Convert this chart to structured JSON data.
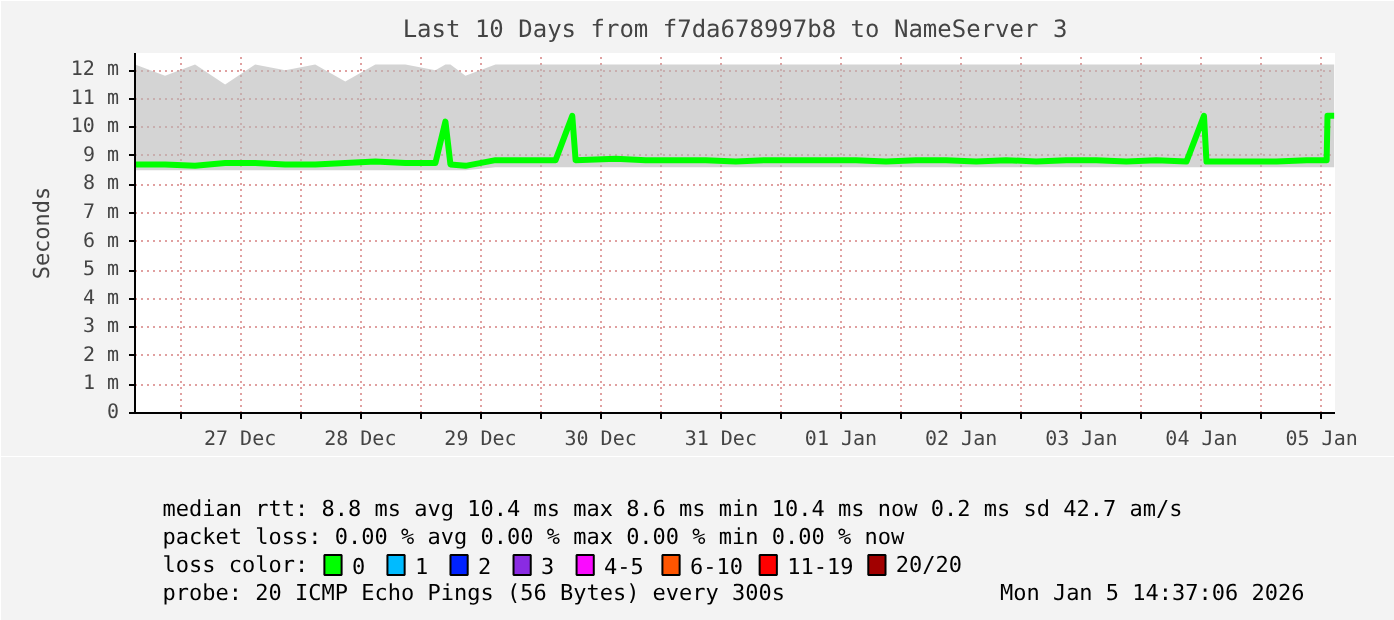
{
  "chart_data": {
    "type": "line",
    "title": "Last 10 Days from f7da678997b8 to NameServer 3",
    "ylabel": "Seconds",
    "legend_title": "loss color:",
    "legend": "bottom",
    "grid": true,
    "x": [
      "2025-12-26T15:00",
      "2025-12-26T21:00",
      "2025-12-27T03:00",
      "2025-12-27T09:00",
      "2025-12-27T15:00",
      "2025-12-27T21:00",
      "2025-12-28T03:00",
      "2025-12-28T09:00",
      "2025-12-28T15:00",
      "2025-12-28T21:00",
      "2025-12-29T03:00",
      "2025-12-29T05:00",
      "2025-12-29T06:00",
      "2025-12-29T09:00",
      "2025-12-29T15:00",
      "2025-12-29T21:00",
      "2025-12-30T03:00",
      "2025-12-30T06:20",
      "2025-12-30T07:00",
      "2025-12-30T15:00",
      "2025-12-30T21:00",
      "2025-12-31T03:00",
      "2025-12-31T09:00",
      "2025-12-31T15:00",
      "2025-12-31T21:00",
      "2026-01-01T03:00",
      "2026-01-01T09:00",
      "2026-01-01T15:00",
      "2026-01-01T21:00",
      "2026-01-02T03:00",
      "2026-01-02T09:00",
      "2026-01-02T15:00",
      "2026-01-02T21:00",
      "2026-01-03T03:00",
      "2026-01-03T09:00",
      "2026-01-03T15:00",
      "2026-01-03T21:00",
      "2026-01-04T03:00",
      "2026-01-04T09:00",
      "2026-01-04T12:30",
      "2026-01-04T13:00",
      "2026-01-04T21:00",
      "2026-01-05T03:00",
      "2026-01-05T09:00",
      "2026-01-05T13:00",
      "2026-01-05T13:10",
      "2026-01-05T14:30"
    ],
    "series": [
      {
        "name": "0",
        "color": "#00ff00",
        "values": [
          8.7,
          8.7,
          8.65,
          8.75,
          8.75,
          8.7,
          8.7,
          8.75,
          8.8,
          8.75,
          8.75,
          10.2,
          8.7,
          8.65,
          8.85,
          8.85,
          8.85,
          10.4,
          8.85,
          8.9,
          8.85,
          8.85,
          8.85,
          8.8,
          8.85,
          8.85,
          8.85,
          8.85,
          8.8,
          8.85,
          8.85,
          8.8,
          8.85,
          8.8,
          8.85,
          8.85,
          8.8,
          8.85,
          8.8,
          10.4,
          8.8,
          8.8,
          8.8,
          8.85,
          8.85,
          10.4,
          10.4
        ],
        "lower": [
          8.5,
          8.5,
          8.5,
          8.5,
          8.5,
          8.5,
          8.5,
          8.5,
          8.5,
          8.5,
          8.5,
          8.5,
          8.5,
          8.5,
          8.6,
          8.6,
          8.6,
          8.6,
          8.6,
          8.6,
          8.6,
          8.6,
          8.6,
          8.6,
          8.6,
          8.6,
          8.6,
          8.6,
          8.6,
          8.6,
          8.6,
          8.6,
          8.6,
          8.6,
          8.6,
          8.6,
          8.6,
          8.6,
          8.6,
          8.6,
          8.6,
          8.6,
          8.6,
          8.6,
          8.6,
          8.6,
          8.6
        ],
        "upper": [
          12.2,
          11.8,
          12.2,
          11.5,
          12.2,
          12.0,
          12.2,
          11.6,
          12.2,
          12.2,
          12.0,
          12.2,
          12.2,
          11.8,
          12.2,
          12.2,
          12.2,
          12.2,
          12.2,
          12.2,
          12.2,
          12.2,
          12.2,
          12.2,
          12.2,
          12.2,
          12.2,
          12.2,
          12.2,
          12.2,
          12.2,
          12.2,
          12.2,
          12.2,
          12.2,
          12.2,
          12.2,
          12.2,
          12.2,
          12.2,
          12.2,
          12.2,
          12.2,
          12.2,
          12.2,
          12.2,
          12.2
        ]
      },
      {
        "name": "1",
        "color": "#00bbff",
        "values": [
          null,
          null,
          null,
          null,
          null,
          null,
          null,
          null,
          null,
          null,
          null,
          null,
          null,
          null,
          null,
          null,
          null,
          null,
          null,
          null,
          null,
          null,
          null,
          null,
          null,
          null,
          null,
          null,
          null,
          null,
          null,
          null,
          null,
          null,
          null,
          null,
          null,
          null,
          null,
          null,
          null,
          null,
          null,
          null,
          null,
          null,
          null
        ]
      },
      {
        "name": "2",
        "color": "#0022ff",
        "values": [
          null,
          null,
          null,
          null,
          null,
          null,
          null,
          null,
          null,
          null,
          null,
          null,
          null,
          null,
          null,
          null,
          null,
          null,
          null,
          null,
          null,
          null,
          null,
          null,
          null,
          null,
          null,
          null,
          null,
          null,
          null,
          null,
          null,
          null,
          null,
          null,
          null,
          null,
          null,
          null,
          null,
          null,
          null,
          null,
          null,
          null,
          null
        ]
      },
      {
        "name": "3",
        "color": "#8a2be2",
        "values": [
          null,
          null,
          null,
          null,
          null,
          null,
          null,
          null,
          null,
          null,
          null,
          null,
          null,
          null,
          null,
          null,
          null,
          null,
          null,
          null,
          null,
          null,
          null,
          null,
          null,
          null,
          null,
          null,
          null,
          null,
          null,
          null,
          null,
          null,
          null,
          null,
          null,
          null,
          null,
          null,
          null,
          null,
          null,
          null,
          null,
          null,
          null
        ]
      },
      {
        "name": "4-5",
        "color": "#fa0bff",
        "values": [
          null,
          null,
          null,
          null,
          null,
          null,
          null,
          null,
          null,
          null,
          null,
          null,
          null,
          null,
          null,
          null,
          null,
          null,
          null,
          null,
          null,
          null,
          null,
          null,
          null,
          null,
          null,
          null,
          null,
          null,
          null,
          null,
          null,
          null,
          null,
          null,
          null,
          null,
          null,
          null,
          null,
          null,
          null,
          null,
          null,
          null,
          null
        ]
      },
      {
        "name": "6-10",
        "color": "#ff5500",
        "values": [
          null,
          null,
          null,
          null,
          null,
          null,
          null,
          null,
          null,
          null,
          null,
          null,
          null,
          null,
          null,
          null,
          null,
          null,
          null,
          null,
          null,
          null,
          null,
          null,
          null,
          null,
          null,
          null,
          null,
          null,
          null,
          null,
          null,
          null,
          null,
          null,
          null,
          null,
          null,
          null,
          null,
          null,
          null,
          null,
          null,
          null,
          null
        ]
      },
      {
        "name": "11-19",
        "color": "#ff0000",
        "values": [
          null,
          null,
          null,
          null,
          null,
          null,
          null,
          null,
          null,
          null,
          null,
          null,
          null,
          null,
          null,
          null,
          null,
          null,
          null,
          null,
          null,
          null,
          null,
          null,
          null,
          null,
          null,
          null,
          null,
          null,
          null,
          null,
          null,
          null,
          null,
          null,
          null,
          null,
          null,
          null,
          null,
          null,
          null,
          null,
          null,
          null,
          null
        ]
      },
      {
        "name": "20/20",
        "color": "#a10000",
        "values": [
          null,
          null,
          null,
          null,
          null,
          null,
          null,
          null,
          null,
          null,
          null,
          null,
          null,
          null,
          null,
          null,
          null,
          null,
          null,
          null,
          null,
          null,
          null,
          null,
          null,
          null,
          null,
          null,
          null,
          null,
          null,
          null,
          null,
          null,
          null,
          null,
          null,
          null,
          null,
          null,
          null,
          null,
          null,
          null,
          null,
          null,
          null
        ]
      }
    ],
    "xlim": [
      "2025-12-26T15:00",
      "2026-01-05T14:40"
    ],
    "xticks": [
      {
        "value": "2025-12-27T00:00",
        "label": null
      },
      {
        "value": "2025-12-27T12:00",
        "label": "27 Dec"
      },
      {
        "value": "2025-12-28T00:00",
        "label": null
      },
      {
        "value": "2025-12-28T12:00",
        "label": "28 Dec"
      },
      {
        "value": "2025-12-29T00:00",
        "label": null
      },
      {
        "value": "2025-12-29T12:00",
        "label": "29 Dec"
      },
      {
        "value": "2025-12-30T00:00",
        "label": null
      },
      {
        "value": "2025-12-30T12:00",
        "label": "30 Dec"
      },
      {
        "value": "2025-12-31T00:00",
        "label": null
      },
      {
        "value": "2025-12-31T12:00",
        "label": "31 Dec"
      },
      {
        "value": "2026-01-01T00:00",
        "label": null
      },
      {
        "value": "2026-01-01T12:00",
        "label": "01 Jan"
      },
      {
        "value": "2026-01-02T00:00",
        "label": null
      },
      {
        "value": "2026-01-02T12:00",
        "label": "02 Jan"
      },
      {
        "value": "2026-01-03T00:00",
        "label": null
      },
      {
        "value": "2026-01-03T12:00",
        "label": "03 Jan"
      },
      {
        "value": "2026-01-04T00:00",
        "label": null
      },
      {
        "value": "2026-01-04T12:00",
        "label": "04 Jan"
      },
      {
        "value": "2026-01-05T00:00",
        "label": null
      },
      {
        "value": "2026-01-05T12:00",
        "label": "05 Jan"
      }
    ],
    "ylim": [
      0,
      12.6
    ],
    "yticks": [
      0,
      {
        "value": 1,
        "label": "1 m"
      },
      {
        "value": 2,
        "label": "2 m"
      },
      {
        "value": 3,
        "label": "3 m"
      },
      {
        "value": 4,
        "label": "4 m"
      },
      {
        "value": 5,
        "label": "5 m"
      },
      {
        "value": 6,
        "label": "6 m"
      },
      {
        "value": 7,
        "label": "7 m"
      },
      {
        "value": 8,
        "label": "8 m"
      },
      {
        "value": 9,
        "label": "9 m"
      },
      {
        "value": 10,
        "label": "10 m"
      },
      {
        "value": 11,
        "label": "11 m"
      },
      {
        "value": 12,
        "label": "12 m"
      }
    ],
    "annotations": [
      "median rtt:  8.8 ms avg  10.4 ms max  8.6 ms min  10.4 ms now  0.2 ms sd  42.7   am/s",
      "packet loss: 0.00 % avg  0.00 % max  0.00 % min  0.00 % now",
      "probe:       20 ICMP Echo Pings (56 Bytes) every 300s",
      "Mon Jan  5 14:37:06 2026"
    ]
  }
}
